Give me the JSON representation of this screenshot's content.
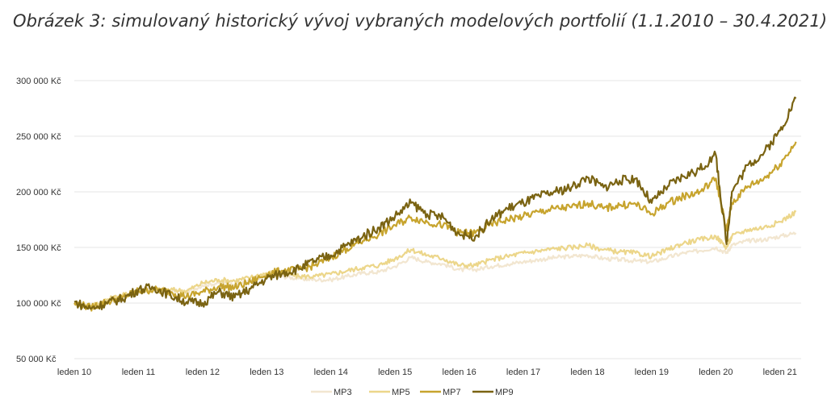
{
  "title": "Obrázek 3: simulovaný historický vývoj vybraných modelových portfolií (1.1.2010 – 30.4.2021)",
  "chart_data": {
    "type": "line",
    "ylabel": "",
    "xlabel": "",
    "ylim": [
      50000,
      300000
    ],
    "yticks": [
      {
        "value": 50000,
        "label": "50 000 Kč"
      },
      {
        "value": 100000,
        "label": "100 000 Kč"
      },
      {
        "value": 150000,
        "label": "150 000 Kč"
      },
      {
        "value": 200000,
        "label": "200 000 Kč"
      },
      {
        "value": 250000,
        "label": "250 000 Kč"
      },
      {
        "value": 300000,
        "label": "300 000 Kč"
      }
    ],
    "xticks": [
      {
        "value": "2010-01",
        "label": "leden 10"
      },
      {
        "value": "2011-01",
        "label": "leden 11"
      },
      {
        "value": "2012-01",
        "label": "leden 12"
      },
      {
        "value": "2013-01",
        "label": "leden 13"
      },
      {
        "value": "2014-01",
        "label": "leden 14"
      },
      {
        "value": "2015-01",
        "label": "leden 15"
      },
      {
        "value": "2016-01",
        "label": "leden 16"
      },
      {
        "value": "2017-01",
        "label": "leden 17"
      },
      {
        "value": "2018-01",
        "label": "leden 18"
      },
      {
        "value": "2019-01",
        "label": "leden 19"
      },
      {
        "value": "2020-01",
        "label": "leden 20"
      },
      {
        "value": "2021-01",
        "label": "leden 21"
      }
    ],
    "x": [
      "2010-01",
      "2010-04",
      "2010-07",
      "2010-10",
      "2011-01",
      "2011-04",
      "2011-07",
      "2011-10",
      "2012-01",
      "2012-04",
      "2012-07",
      "2012-10",
      "2013-01",
      "2013-04",
      "2013-07",
      "2013-10",
      "2014-01",
      "2014-04",
      "2014-07",
      "2014-10",
      "2015-01",
      "2015-04",
      "2015-07",
      "2015-10",
      "2016-01",
      "2016-04",
      "2016-07",
      "2016-10",
      "2017-01",
      "2017-04",
      "2017-07",
      "2017-10",
      "2018-01",
      "2018-04",
      "2018-07",
      "2018-10",
      "2019-01",
      "2019-04",
      "2019-07",
      "2019-10",
      "2020-01",
      "2020-03",
      "2020-04",
      "2020-07",
      "2020-10",
      "2021-01",
      "2021-04"
    ],
    "series": [
      {
        "name": "MP3",
        "color": "#f2e6d0",
        "values": [
          100000,
          97000,
          102000,
          106000,
          110000,
          112000,
          111000,
          110000,
          116000,
          118000,
          117000,
          120000,
          124000,
          124000,
          122000,
          121000,
          121000,
          124000,
          127000,
          128000,
          133000,
          141000,
          137000,
          135000,
          130000,
          130000,
          133000,
          135000,
          137000,
          139000,
          141000,
          142000,
          143000,
          140000,
          139000,
          138000,
          137000,
          141000,
          145000,
          147000,
          150000,
          145000,
          152000,
          156000,
          157000,
          160000,
          163000
        ]
      },
      {
        "name": "MP5",
        "color": "#ecd68a",
        "values": [
          100000,
          97000,
          103000,
          107000,
          111000,
          112000,
          112000,
          111000,
          118000,
          121000,
          120000,
          123000,
          127000,
          127000,
          124000,
          124000,
          126000,
          129000,
          132000,
          134000,
          140000,
          148000,
          143000,
          140000,
          134000,
          134000,
          139000,
          142000,
          145000,
          147000,
          149000,
          150000,
          152000,
          148000,
          146000,
          145000,
          142000,
          148000,
          154000,
          157000,
          160000,
          150000,
          160000,
          166000,
          168000,
          173000,
          182000
        ]
      },
      {
        "name": "MP7",
        "color": "#c7a42e",
        "values": [
          100000,
          96000,
          101000,
          105000,
          111000,
          112000,
          110000,
          106000,
          110000,
          115000,
          114000,
          119000,
          126000,
          129000,
          130000,
          134000,
          141000,
          149000,
          156000,
          162000,
          170000,
          177000,
          173000,
          170000,
          163000,
          163000,
          171000,
          175000,
          178000,
          182000,
          185000,
          186000,
          190000,
          185000,
          188000,
          189000,
          180000,
          190000,
          196000,
          200000,
          212000,
          165000,
          190000,
          205000,
          212000,
          225000,
          245000
        ]
      },
      {
        "name": "MP9",
        "color": "#7a6312",
        "values": [
          101000,
          95000,
          100000,
          104000,
          112000,
          114000,
          107000,
          101000,
          100000,
          110000,
          105000,
          113000,
          122000,
          127000,
          131000,
          138000,
          143000,
          152000,
          160000,
          168000,
          178000,
          190000,
          180000,
          177000,
          162000,
          160000,
          175000,
          185000,
          190000,
          196000,
          200000,
          204000,
          213000,
          204000,
          210000,
          212000,
          190000,
          205000,
          214000,
          220000,
          233000,
          153000,
          200000,
          224000,
          235000,
          255000,
          284000
        ]
      }
    ],
    "legend_position": "bottom"
  }
}
